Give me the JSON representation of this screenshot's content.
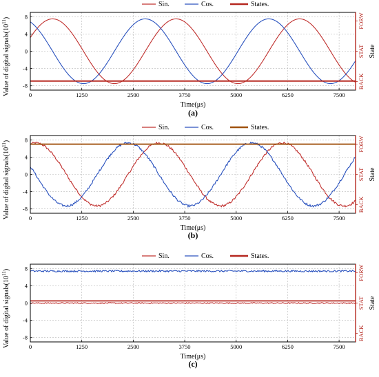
{
  "chart_data": [
    {
      "type": "line",
      "caption": "(a)",
      "xlabel": "Time(μs)",
      "ylabel": "Value of digital signals(10",
      "ylabel_exp": "11",
      "ylabel_tail": ")",
      "right_label": "State",
      "right_ticks": [
        "BACK",
        "STAT",
        "FORW"
      ],
      "x_ticks": [
        "0",
        "1250",
        "2500",
        "3750",
        "5000",
        "6250",
        "7500"
      ],
      "y_ticks": [
        "-8",
        "-4",
        "0",
        "4",
        "8"
      ],
      "xlim": [
        0,
        7900
      ],
      "ylim": [
        -9,
        9
      ],
      "grid": true,
      "legend": "top",
      "series": [
        {
          "name": "Sin.",
          "color": "#c0302e",
          "kind": "sine",
          "amplitude": 7.5,
          "period": 3000,
          "phase_deg": 25,
          "noise": 0
        },
        {
          "name": "Cos.",
          "color": "#2a52be",
          "kind": "cosine",
          "amplitude": 7.5,
          "period": 3000,
          "phase_deg": 25,
          "noise": 0
        },
        {
          "name": "States.",
          "color": "#b5271f",
          "kind": "state",
          "level": "BACK",
          "y": -6.9
        }
      ]
    },
    {
      "type": "line",
      "caption": "(b)",
      "xlabel": "Time(μs)",
      "ylabel": "Value of digital signals(10",
      "ylabel_exp": "11",
      "ylabel_tail": ")",
      "right_label": "State",
      "right_ticks": [
        "BACK",
        "STAT",
        "FORW"
      ],
      "x_ticks": [
        "0",
        "1250",
        "2500",
        "3750",
        "5000",
        "6250",
        "7500"
      ],
      "y_ticks": [
        "-8",
        "-4",
        "0",
        "4",
        "8"
      ],
      "xlim": [
        0,
        7900
      ],
      "ylim": [
        -9,
        9
      ],
      "grid": true,
      "legend": "top",
      "series": [
        {
          "name": "Sin.",
          "color": "#c0302e",
          "kind": "sine",
          "amplitude": 7.3,
          "period": 3000,
          "phase_deg": 75,
          "noise": 0.25
        },
        {
          "name": "Cos.",
          "color": "#2a52be",
          "kind": "cosine",
          "amplitude": 7.3,
          "period": 3000,
          "phase_deg": 75,
          "noise": 0.25
        },
        {
          "name": "States.",
          "color": "#a0520f",
          "kind": "state",
          "level": "FORW",
          "y": 7.0
        }
      ]
    },
    {
      "type": "line",
      "caption": "(c)",
      "xlabel": "Time(μs)",
      "ylabel": "Value of digital signals(10",
      "ylabel_exp": "11",
      "ylabel_tail": ")",
      "right_label": "State",
      "right_ticks": [
        "BACK",
        "STAT",
        "FORW"
      ],
      "x_ticks": [
        "0",
        "1250",
        "2500",
        "3750",
        "5000",
        "6250",
        "7500"
      ],
      "y_ticks": [
        "-8",
        "-4",
        "0",
        "4",
        "8"
      ],
      "xlim": [
        0,
        7900
      ],
      "ylim": [
        -9,
        9
      ],
      "grid": true,
      "legend": "top",
      "series": [
        {
          "name": "Sin.",
          "color": "#c0302e",
          "kind": "flat",
          "y": 0.0,
          "noise": 0.12
        },
        {
          "name": "Cos.",
          "color": "#2a52be",
          "kind": "flat",
          "y": 7.4,
          "noise": 0.2
        },
        {
          "name": "States.",
          "color": "#b5271f",
          "kind": "state",
          "level": "STAT",
          "y": 0.5
        }
      ]
    }
  ]
}
